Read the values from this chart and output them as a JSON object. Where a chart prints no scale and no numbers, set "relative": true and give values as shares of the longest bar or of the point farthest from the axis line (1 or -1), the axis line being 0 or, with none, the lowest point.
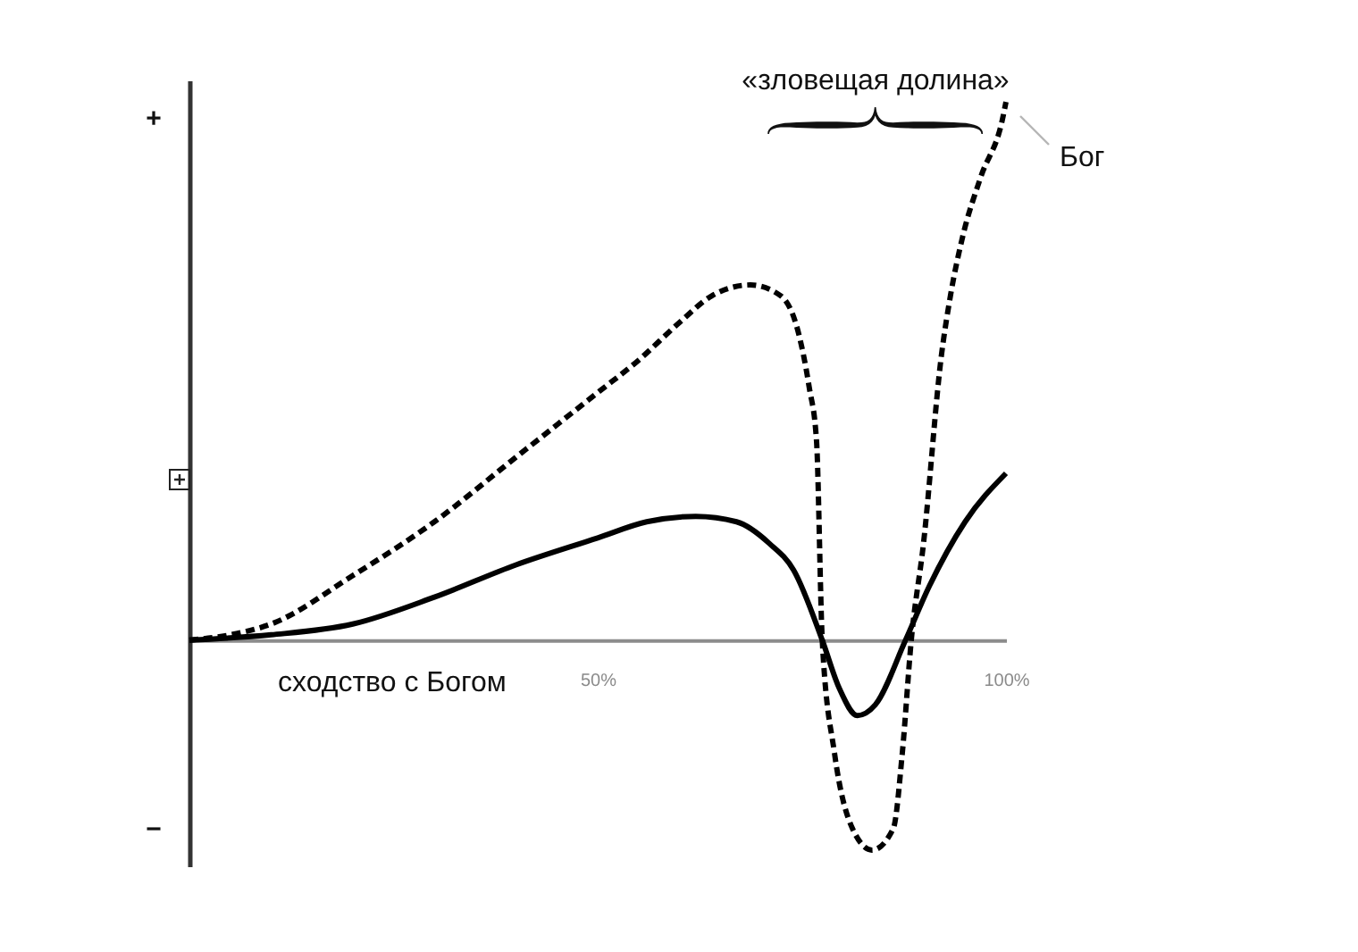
{
  "chart_data": {
    "type": "line",
    "relative": true,
    "xlabel": "сходство с Богом",
    "xlim": [
      0,
      100
    ],
    "xticks": [
      {
        "value": 50,
        "label": "50%"
      },
      {
        "value": 100,
        "label": "100%"
      }
    ],
    "annotations": [
      "+",
      "−",
      "«зловещая долина»",
      {
        "text": "Бог",
        "x": 100,
        "y": 1
      }
    ],
    "series": [
      {
        "color": "#000000",
        "line_style": "solid",
        "x": [
          0,
          10,
          20,
          30,
          40,
          50,
          56,
          62,
          67,
          71,
          74,
          77.5,
          79.6,
          81.8,
          84.0,
          87.7,
          90.6,
          95.0,
          100
        ],
        "values": [
          0,
          0.01,
          0.03,
          0.08,
          0.14,
          0.19,
          0.22,
          0.23,
          0.22,
          0.18,
          0.13,
          0,
          -0.09,
          -0.14,
          -0.12,
          0,
          0.1,
          0.22,
          0.31
        ]
      },
      {
        "color": "#000000",
        "line_style": "dashed",
        "x": [
          0,
          5,
          10,
          20,
          30,
          40,
          50,
          55,
          60,
          64,
          68.7,
          72.4,
          74.6,
          75.9,
          76.8,
          77.5,
          79.0,
          81.2,
          83.6,
          86.2,
          87.3,
          88.4,
          89.9,
          92.1,
          93.2,
          94.7,
          96.9,
          99.6,
          100
        ],
        "values": [
          0,
          0.01,
          0.03,
          0.12,
          0.22,
          0.34,
          0.46,
          0.52,
          0.59,
          0.64,
          0.66,
          0.64,
          0.57,
          0.47,
          0.37,
          0,
          -0.21,
          -0.35,
          -0.39,
          -0.35,
          -0.21,
          0,
          0.18,
          0.53,
          0.64,
          0.75,
          0.86,
          0.97,
          1
        ]
      }
    ]
  }
}
